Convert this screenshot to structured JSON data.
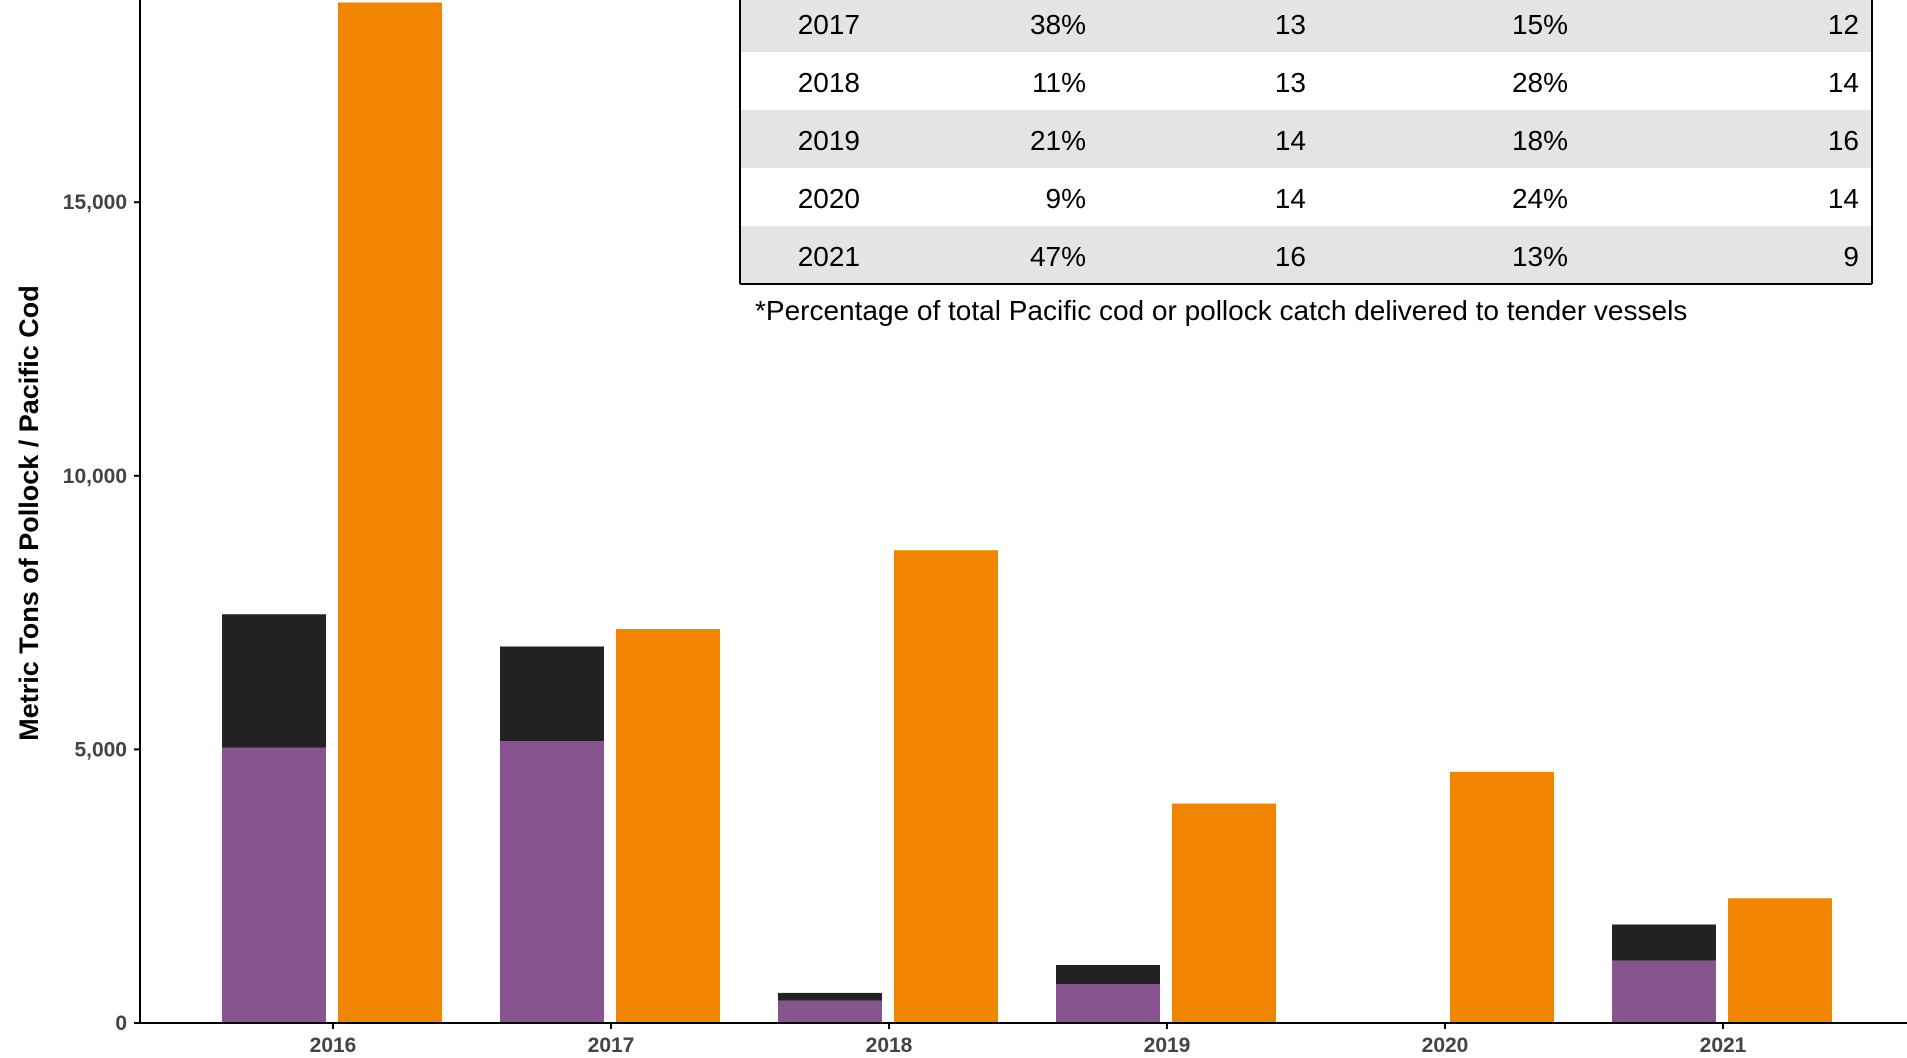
{
  "chart_data": {
    "type": "bar",
    "xlabel": "",
    "ylabel": "Metric Tons of Pollock / Pacific Cod",
    "ylim": [
      0,
      18700
    ],
    "yticks": [
      0,
      5000,
      10000,
      15000
    ],
    "ytick_labels": [
      "0",
      "5,000",
      "10,000",
      "15,000"
    ],
    "grid": false,
    "categories": [
      "2016",
      "2017",
      "2018",
      "2019",
      "2020",
      "2021"
    ],
    "series": [
      {
        "stack": "left",
        "color": "#87548f",
        "values": [
          5030,
          5150,
          410,
          710,
          0,
          1140
        ]
      },
      {
        "stack": "left",
        "color": "#222222",
        "values": [
          2440,
          1730,
          140,
          350,
          0,
          660
        ]
      },
      {
        "stack": "right",
        "color": "#f28500",
        "values": [
          18650,
          7200,
          8640,
          4010,
          4590,
          2280
        ]
      }
    ],
    "table": {
      "rows": [
        [
          "2017",
          "38%",
          "13",
          "15%",
          "12"
        ],
        [
          "2018",
          "11%",
          "13",
          "28%",
          "14"
        ],
        [
          "2019",
          "21%",
          "14",
          "18%",
          "16"
        ],
        [
          "2020",
          "9%",
          "14",
          "24%",
          "14"
        ],
        [
          "2021",
          "47%",
          "16",
          "13%",
          "9"
        ]
      ],
      "footnote": "*Percentage of total Pacific cod or pollock catch delivered to tender vessels"
    }
  }
}
